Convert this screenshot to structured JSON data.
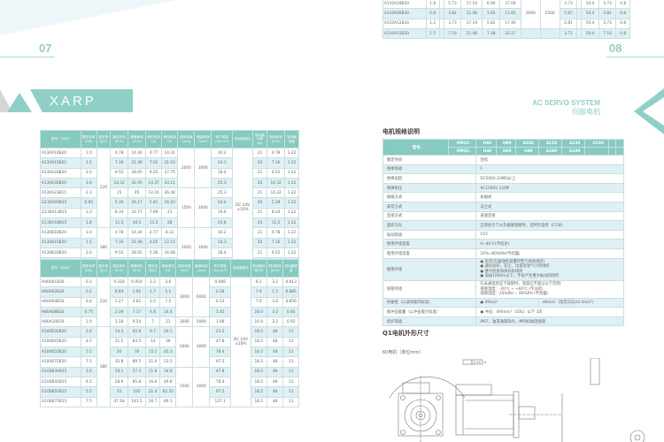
{
  "left": {
    "page_number": "07",
    "brand": "XARP",
    "table1": {
      "header": [
        "型号：XMQ1",
        "额定功率(kW)",
        "额定电压(V)",
        "额定转矩(N·m)",
        "峰值转矩(N·m)",
        "额定电流(A)",
        "峰值电流(A)",
        "额定转速(rpm)",
        "最高转速(rpm)",
        "转子惯量(kg·cm²)",
        "制动器电压",
        "制动器功率(W)",
        "制动转矩(N·m)",
        "制动器惯量"
      ],
      "rows": [
        [
          "A130A10B20",
          "1.0",
          {
            "v": "220",
            "rs": 8
          },
          "4.78",
          "14.34",
          "4.77",
          "14.31",
          {
            "v": "2000",
            "rs": 4
          },
          {
            "v": "3000",
            "rs": 4
          },
          "10.2",
          {
            "v": "DC 24V ±10%",
            "rs": 12
          },
          "21",
          "4.78",
          "1.22"
        ],
        [
          "A130A15B20",
          "1.5",
          "7.16",
          "21.48",
          "7.01",
          "21.03",
          "14.3",
          "20",
          "7.16",
          "1.22"
        ],
        [
          "A130A20B20",
          "2.0",
          "9.55",
          "28.65",
          "9.25",
          "27.75",
          "18.4",
          "21",
          "9.55",
          "1.22"
        ],
        [
          "A130A30B20",
          "3.0",
          "14.32",
          "42.95",
          "14.37",
          "43.11",
          "25.3",
          "20",
          "14.32",
          "1.22"
        ],
        [
          "A130A23B15",
          "2.3",
          "15",
          "45",
          "12.16",
          "36.48",
          {
            "v": "1500",
            "rs": 4
          },
          {
            "v": "3000",
            "rs": 4
          },
          "25.3",
          "21",
          "14.32",
          "1.22"
        ],
        [
          "G130A09B15",
          "0.85",
          "5.39",
          "16.17",
          "5.41",
          "16.20",
          "14.4",
          "20",
          "5.39",
          "1.22"
        ],
        [
          "G130A13B15",
          "1.3",
          "8.34",
          "22.77",
          "7.69",
          "21",
          "19.6",
          "21",
          "8.34",
          "1.22"
        ],
        [
          "G130A18B15",
          "1.8",
          "11.5",
          "34.5",
          "11.2",
          "28",
          "24.8",
          "20",
          "11.5",
          "1.22"
        ],
        [
          "A130B10B20",
          "1.0",
          {
            "v": "380",
            "rs": 4
          },
          "4.78",
          "14.34",
          "2.77",
          "8.31",
          {
            "v": "2000",
            "rs": 4
          },
          {
            "v": "3000",
            "rs": 4
          },
          "10.2",
          "21",
          "4.78",
          "1.22"
        ],
        [
          "A130B15B20",
          "1.5",
          "7.16",
          "21.48",
          "4.05",
          "12.15",
          "14.3",
          "20",
          "7.16",
          "1.22"
        ],
        [
          "A130B20B20",
          "2.0",
          "9.55",
          "28.65",
          "5.36",
          "16.08",
          "18.4",
          "21",
          "9.55",
          "1.22"
        ],
        [
          "A130B30B20",
          "3.0",
          "14.32",
          "42.95",
          "8.34",
          "25.02",
          "25.3",
          "20",
          "14.32",
          "1.22"
        ]
      ]
    },
    "table2": {
      "header": [
        "型号：XMQ2",
        "额定功率(kW)",
        "额定电压(V)",
        "额定转矩(N·m)",
        "峰值转矩(N·m)",
        "额定电流(A)",
        "峰值电流(A)",
        "额定转速(rpm)",
        "最高转速(rpm)",
        "转子惯量(kg·cm²)",
        "制动器电压",
        "制动器功率(W)",
        "制动转矩(N·m)",
        "制动器惯量"
      ],
      "rows": [
        [
          "H40A01B30",
          "0.1",
          {
            "v": "220",
            "rs": 5
          },
          "0.318",
          "0.954",
          "1.2",
          "3.6",
          {
            "v": "3000",
            "rs": 4
          },
          {
            "v": "6000",
            "rs": 4
          },
          "0.066",
          {
            "v": "DC 24V ±10%",
            "rs": 13
          },
          "6.1",
          "3.2",
          "0.813"
        ],
        [
          "H60A02B30",
          "0.2",
          "0.64",
          "1.91",
          "1.7",
          "5.1",
          "0.28",
          "7.6",
          "1.5",
          "0.885"
        ],
        [
          "H60A04B30",
          "0.4",
          "1.27",
          "3.81",
          "2.5",
          "7.5",
          "0.53",
          "7.6",
          "3.0",
          "0.856"
        ],
        [
          "H80A08B30",
          "0.75",
          "2.39",
          "7.17",
          "4.8",
          "14.4",
          "1.45",
          "16.0",
          "3.2",
          "0.92"
        ],
        [
          "H80A10B30",
          "1.0",
          "3.18",
          "9.54",
          "7",
          "21",
          "3000",
          "5000",
          "1.98",
          "16.0",
          "3.2",
          "0.92"
        ],
        [
          "A100B30B20",
          "3.0",
          {
            "v": "380",
            "rs": 8
          },
          "14.3",
          "42.9",
          "9.7",
          "29.1",
          {
            "v": "2000",
            "rs": 4
          },
          {
            "v": "3000",
            "rs": 4
          },
          "23.5",
          "18.5",
          "48",
          "11"
        ],
        [
          "A100B45B20",
          "4.5",
          "21.5",
          "64.5",
          "13",
          "39",
          "47.8",
          "18.5",
          "48",
          "11"
        ],
        [
          "A100B55B20",
          "5.5",
          "26",
          "78",
          "15.1",
          "45.3",
          "78.4",
          "18.5",
          "48",
          "11"
        ],
        [
          "A100B75B20",
          "7.5",
          "35.8",
          "89.5",
          "21.4",
          "53.5",
          "97.5",
          "18.5",
          "48",
          "11"
        ],
        [
          "G100B30B15",
          "3.0",
          "19.1",
          "57.3",
          "11.6",
          "34.8",
          {
            "v": "1500",
            "rs": 4
          },
          {
            "v": "3000",
            "rs": 4
          },
          "47.8",
          "18.5",
          "48",
          "11"
        ],
        [
          "G100B45B15",
          "4.5",
          "28.6",
          "85.8",
          "16.6",
          "49.8",
          "78.4",
          "18.5",
          "48",
          "11"
        ],
        [
          "G100B55B15",
          "5.5",
          "35",
          "102",
          "21.4",
          "62.35",
          "97.5",
          "18.5",
          "48",
          "11"
        ],
        [
          "G100B75B15",
          "7.5",
          "47.18",
          "141.5",
          "26.7",
          "80.1",
          "127.1",
          "18.5",
          "48",
          "11"
        ]
      ]
    }
  },
  "right": {
    "page_number": "08",
    "series_en": "AC SERVO SYSTEM",
    "series_cn": "伺服电机",
    "top_table": {
      "rows": [
        [
          "A110A18B30",
          "1.8",
          "",
          "5.73",
          "17.19",
          "6.00",
          "27.06",
          {
            "v": "2000",
            "rs": 3
          },
          {
            "v": "2500",
            "rs": 3
          },
          "3.73",
          "",
          "19.4",
          "5.73",
          "0.8"
        ],
        [
          "A110A06B20",
          "0.6",
          "",
          "3.82",
          "11.46",
          "3.95",
          "11.85",
          "5.87",
          "",
          "19.4",
          "3.82",
          "0.8"
        ],
        [
          "A110A12B20",
          "1.2",
          "",
          "3.73",
          "17.19",
          "5.82",
          "17.46",
          "2.81",
          "",
          "19.4",
          "5.73",
          "0.8"
        ],
        [
          "A110A15B20",
          "1.5",
          "",
          "7.16",
          "21.48",
          "7.38",
          "22.17",
          "",
          "",
          "3.71",
          "",
          "19.4",
          "7.16",
          "0.8"
        ]
      ]
    },
    "spec_title": "电机规格说明",
    "spec": {
      "model_label": "型号:",
      "xmq1": {
        "label": "XMQ1-",
        "models": [
          "H60",
          "H80",
          "A100",
          "A110",
          "A130",
          "G130",
          "",
          ""
        ]
      },
      "xmq2": {
        "label": "XMQ2-",
        "models": [
          "H40",
          "H60",
          "H80",
          "A180",
          "G180",
          "",
          "",
          ""
        ]
      },
      "rows": [
        {
          "k": "额定时间",
          "v": "连续"
        },
        {
          "k": "绝缘等级",
          "v": "F"
        },
        {
          "k": "绝缘电阻",
          "v": "DC500V,10MΩ以上"
        },
        {
          "k": "绝缘耐压",
          "v": "AC1500V,1分钟"
        },
        {
          "k": "励磁方式",
          "v": "永磁式"
        },
        {
          "k": "安装方式",
          "v": "法兰式"
        },
        {
          "k": "连接方式",
          "v": "直接连接"
        },
        {
          "k": "旋转方向",
          "v": "正转指令下从负载侧观察时，逆时针旋转（CCW）"
        },
        {
          "k": "振动等级",
          "v": "V15"
        },
        {
          "k": "使用环境温度",
          "v": "0~40℃(不结冰)"
        },
        {
          "k": "使用环境湿度",
          "v": "20%~80%RH(不结露)"
        },
        {
          "k": "使用环境",
          "lines": [
            "● 室内(无腐蚀性或爆炸性气体的场所)",
            "● 通风良好，灰尘、垃圾及湿气少的场所",
            "● 便于检查和清扫的场所",
            "● 海拔1000m以下，不会产生重大振动的场所"
          ]
        },
        {
          "k": "保管环境",
          "lines": [
            "在未通电状态下保管时，温度应不超过以下范围：",
            "保管温度：-20℃ ~ +60℃ (不冻结)",
            "保管湿度：20%RH ~ 90%RH (不结露)"
          ]
        },
        {
          "k": "抗振性（以波纹能的标准）",
          "v": "● 49m/s²",
          "v2": "49m/s²（前后方向24.5m/s²）"
        },
        {
          "k": "耐冲击能量（以冲击能力标准）",
          "v": "● 冲击：490m/s²（10G）以下 3次"
        },
        {
          "k": "保护等级",
          "v": "IP67，轴贯通部除外，并除机械连接部"
        }
      ]
    },
    "dim_title": "Q1电机外形尺寸",
    "dim_subtitle": "60电机（单位mm）",
    "drawing_labels": [
      "0.04",
      "A"
    ]
  },
  "colors": {
    "accent": "#8fcfc6",
    "header": "#86cac0",
    "row_alt": "#dff0f5"
  }
}
